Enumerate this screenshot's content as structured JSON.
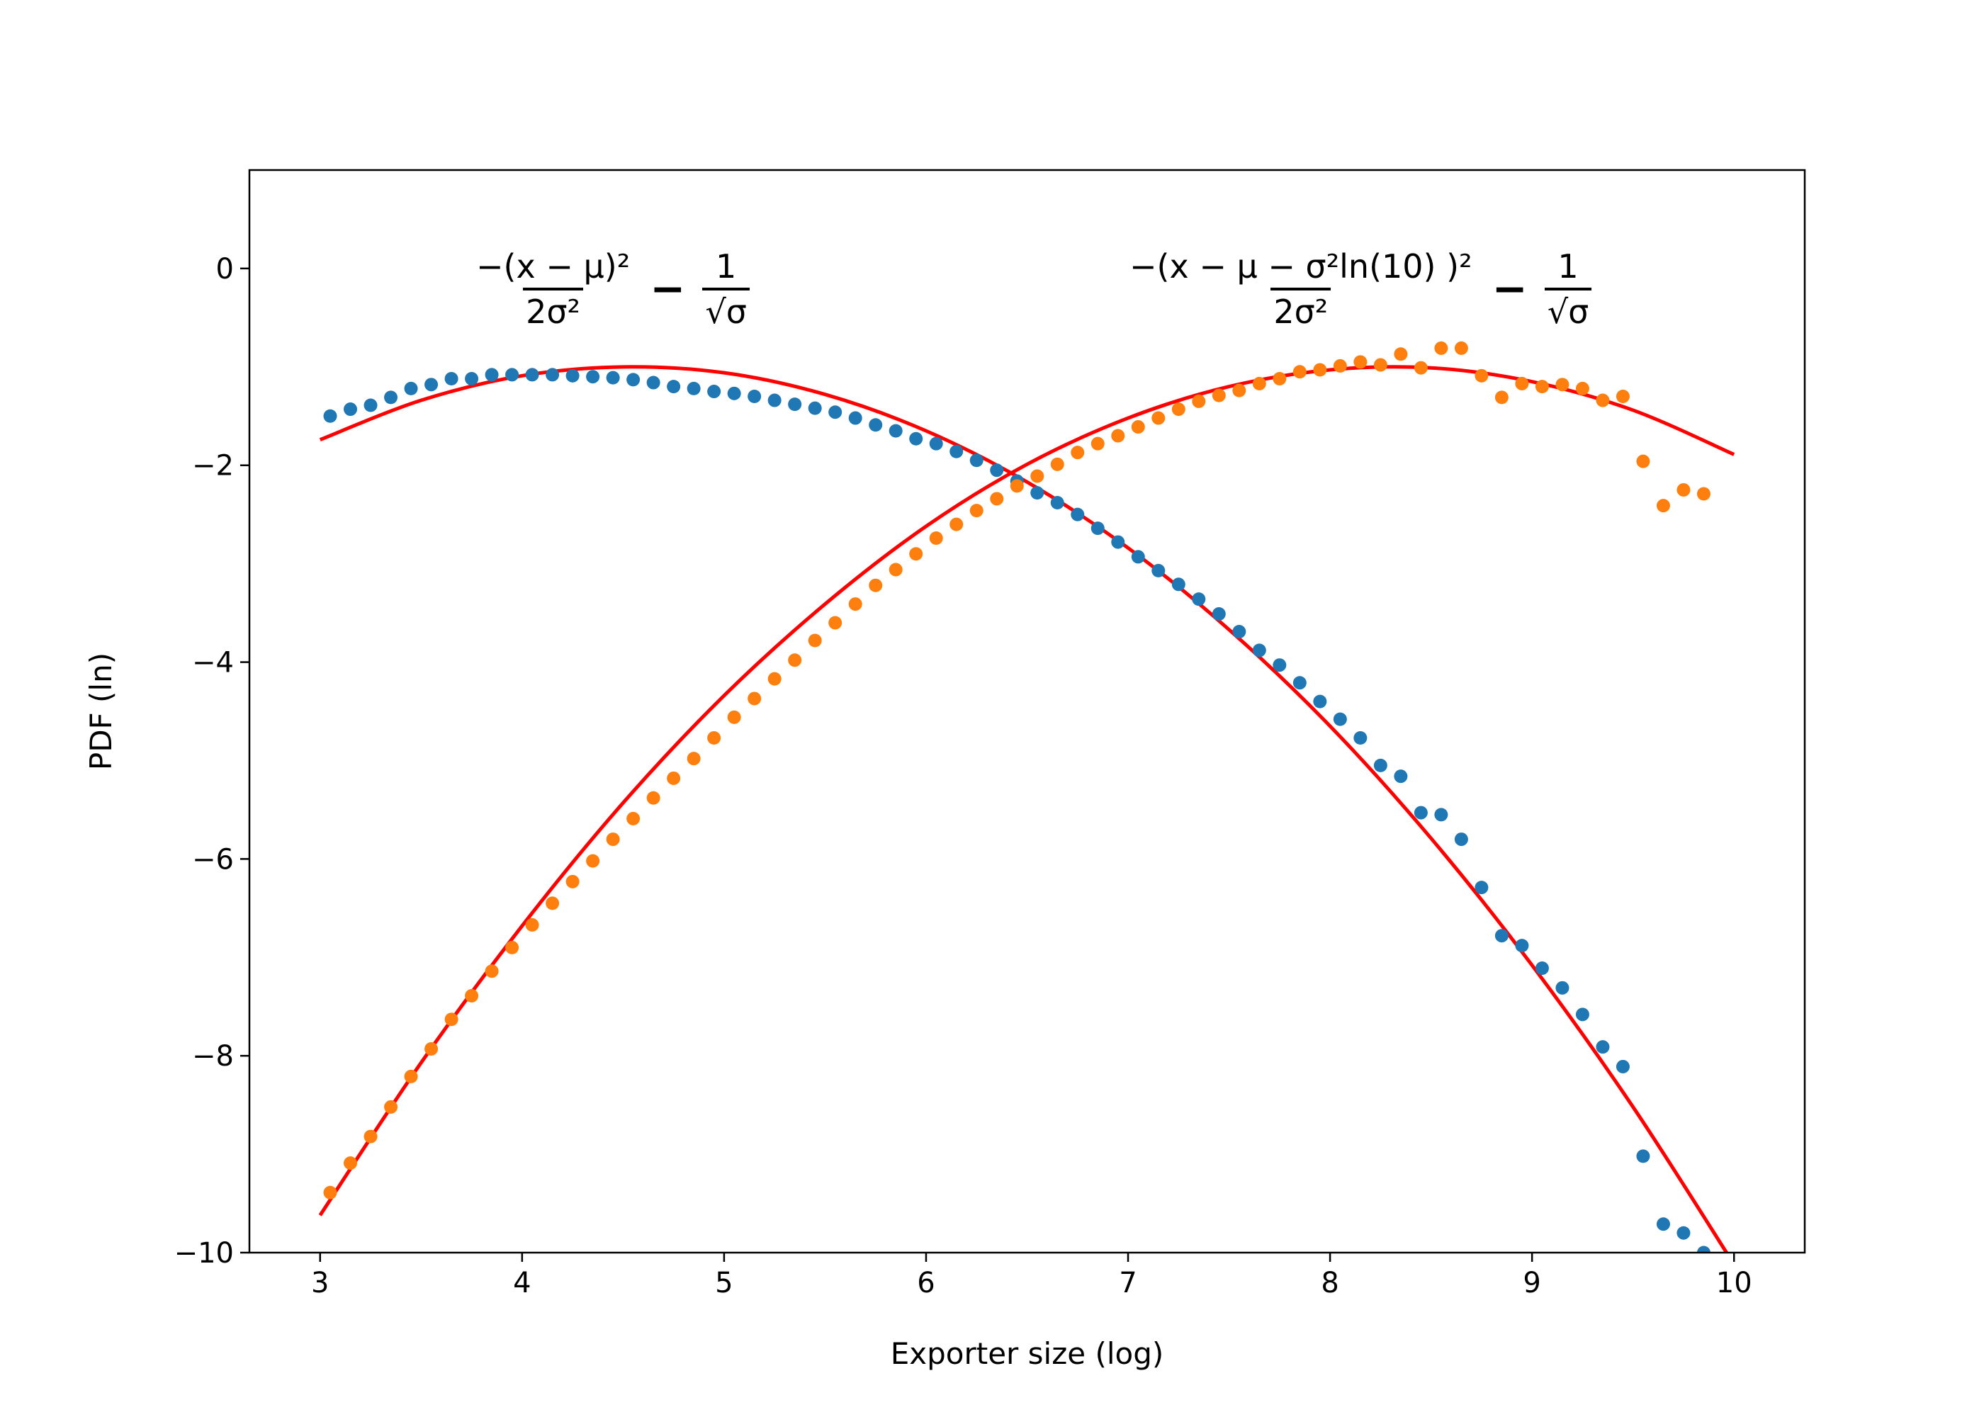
{
  "chart_data": {
    "type": "scatter",
    "xlabel": "Exporter size (log)",
    "ylabel": "PDF (ln)",
    "xlim": [
      2.65,
      10.35
    ],
    "ylim": [
      -10,
      1
    ],
    "xticks": [
      3,
      4,
      5,
      6,
      7,
      8,
      9,
      10
    ],
    "yticks": [
      0,
      -2,
      -4,
      -6,
      -8,
      -10
    ],
    "xtick_labels": [
      "3",
      "4",
      "5",
      "6",
      "7",
      "8",
      "9",
      "10"
    ],
    "ytick_labels": [
      "0",
      "−2",
      "−4",
      "−6",
      "−8",
      "−10"
    ],
    "grid": false,
    "series": [
      {
        "color": "#1f77b4",
        "x": [
          3.05,
          3.15,
          3.25,
          3.35,
          3.45,
          3.55,
          3.65,
          3.75,
          3.85,
          3.95,
          4.05,
          4.15,
          4.25,
          4.35,
          4.45,
          4.55,
          4.65,
          4.75,
          4.85,
          4.95,
          5.05,
          5.15,
          5.25,
          5.35,
          5.45,
          5.55,
          5.65,
          5.75,
          5.85,
          5.95,
          6.05,
          6.15,
          6.25,
          6.35,
          6.45,
          6.55,
          6.65,
          6.75,
          6.85,
          6.95,
          7.05,
          7.15,
          7.25,
          7.35,
          7.45,
          7.55,
          7.65,
          7.75,
          7.85,
          7.95,
          8.05,
          8.15,
          8.25,
          8.35,
          8.45,
          8.55,
          8.65,
          8.75,
          8.85,
          8.95,
          9.05,
          9.15,
          9.25,
          9.35,
          9.45,
          9.55,
          9.65,
          9.75,
          9.85
        ],
        "y": [
          -1.5,
          -1.43,
          -1.39,
          -1.31,
          -1.22,
          -1.18,
          -1.12,
          -1.12,
          -1.08,
          -1.08,
          -1.08,
          -1.08,
          -1.09,
          -1.1,
          -1.11,
          -1.13,
          -1.16,
          -1.2,
          -1.22,
          -1.25,
          -1.27,
          -1.3,
          -1.34,
          -1.38,
          -1.42,
          -1.46,
          -1.52,
          -1.59,
          -1.65,
          -1.73,
          -1.78,
          -1.86,
          -1.95,
          -2.05,
          -2.16,
          -2.28,
          -2.38,
          -2.5,
          -2.64,
          -2.78,
          -2.93,
          -3.07,
          -3.21,
          -3.36,
          -3.51,
          -3.69,
          -3.88,
          -4.03,
          -4.21,
          -4.4,
          -4.58,
          -4.77,
          -5.05,
          -5.16,
          -5.53,
          -5.55,
          -5.8,
          -6.29,
          -6.78,
          -6.88,
          -7.11,
          -7.31,
          -7.58,
          -7.91,
          -8.11,
          -9.02,
          -9.71,
          -9.8,
          -10.0
        ]
      },
      {
        "color": "#ff7f0e",
        "x": [
          3.05,
          3.15,
          3.25,
          3.35,
          3.45,
          3.55,
          3.65,
          3.75,
          3.85,
          3.95,
          4.05,
          4.15,
          4.25,
          4.35,
          4.45,
          4.55,
          4.65,
          4.75,
          4.85,
          4.95,
          5.05,
          5.15,
          5.25,
          5.35,
          5.45,
          5.55,
          5.65,
          5.75,
          5.85,
          5.95,
          6.05,
          6.15,
          6.25,
          6.35,
          6.45,
          6.55,
          6.65,
          6.75,
          6.85,
          6.95,
          7.05,
          7.15,
          7.25,
          7.35,
          7.45,
          7.55,
          7.65,
          7.75,
          7.85,
          7.95,
          8.05,
          8.15,
          8.25,
          8.35,
          8.45,
          8.55,
          8.65,
          8.75,
          8.85,
          8.95,
          9.05,
          9.15,
          9.25,
          9.35,
          9.45,
          9.55,
          9.65,
          9.75,
          9.85
        ],
        "y": [
          -9.39,
          -9.09,
          -8.82,
          -8.52,
          -8.21,
          -7.93,
          -7.63,
          -7.39,
          -7.14,
          -6.9,
          -6.67,
          -6.45,
          -6.23,
          -6.02,
          -5.8,
          -5.59,
          -5.38,
          -5.18,
          -4.98,
          -4.77,
          -4.56,
          -4.37,
          -4.17,
          -3.98,
          -3.78,
          -3.6,
          -3.41,
          -3.22,
          -3.06,
          -2.9,
          -2.74,
          -2.6,
          -2.46,
          -2.34,
          -2.21,
          -2.11,
          -1.99,
          -1.87,
          -1.78,
          -1.7,
          -1.61,
          -1.52,
          -1.43,
          -1.35,
          -1.29,
          -1.24,
          -1.17,
          -1.12,
          -1.05,
          -1.03,
          -0.99,
          -0.95,
          -0.98,
          -0.87,
          -1.01,
          -0.81,
          -0.81,
          -1.09,
          -1.31,
          -1.17,
          -1.2,
          -1.18,
          -1.22,
          -1.34,
          -1.3,
          -1.96,
          -2.41,
          -2.25,
          -2.29
        ]
      }
    ],
    "fit_lines": [
      {
        "color": "#ff0000",
        "x": [
          3,
          3.5,
          4,
          4.5,
          5,
          5.5,
          6,
          6.5,
          7,
          7.5,
          8,
          8.5,
          9,
          9.5,
          10
        ],
        "y": [
          -1.74,
          -1.34,
          -1.09,
          -1.0,
          -1.06,
          -1.28,
          -1.65,
          -2.17,
          -2.84,
          -3.67,
          -4.65,
          -5.79,
          -7.08,
          -8.52,
          -10.12
        ]
      },
      {
        "color": "#ff0000",
        "x": [
          3,
          3.5,
          4,
          4.5,
          5,
          5.5,
          6,
          6.5,
          7,
          7.5,
          8,
          8.5,
          9,
          9.5,
          10
        ],
        "y": [
          -9.62,
          -8.07,
          -6.68,
          -5.43,
          -4.34,
          -3.41,
          -2.62,
          -1.99,
          -1.52,
          -1.2,
          -1.03,
          -1.01,
          -1.15,
          -1.44,
          -1.89
        ]
      }
    ],
    "annotations": [
      {
        "numerator": "−(x − μ)²",
        "denominator": "2σ²",
        "operator": "−",
        "term_numerator": "1",
        "term_denominator": "√σ"
      },
      {
        "numerator": "−(x − μ − σ²ln(10) )²",
        "denominator": "2σ²",
        "operator": "−",
        "term_numerator": "1",
        "term_denominator": "√σ"
      }
    ]
  }
}
